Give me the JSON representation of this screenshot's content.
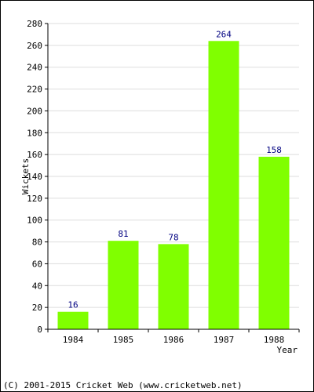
{
  "chart_data": {
    "type": "bar",
    "categories": [
      "1984",
      "1985",
      "1986",
      "1987",
      "1988"
    ],
    "values": [
      16,
      81,
      78,
      264,
      158
    ],
    "ylabel": "Wickets",
    "xlabel": "Year",
    "ylim": [
      0,
      280
    ],
    "yticks": [
      0,
      20,
      40,
      60,
      80,
      100,
      120,
      140,
      160,
      180,
      200,
      220,
      240,
      260,
      280
    ],
    "grid": true,
    "bar_color": "#80ff00",
    "value_label_color": "#000080"
  },
  "footer": "(C) 2001-2015 Cricket Web (www.cricketweb.net)"
}
